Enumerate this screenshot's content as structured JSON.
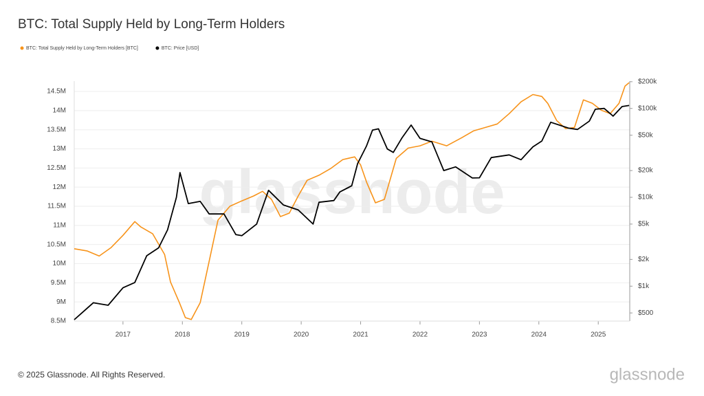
{
  "chart_data": {
    "type": "line",
    "title": "BTC: Total Supply Held by Long-Term Holders",
    "watermark": "glassnode",
    "xlim": [
      2016.18,
      2025.53
    ],
    "xticks": [
      2017,
      2018,
      2019,
      2020,
      2021,
      2022,
      2023,
      2024,
      2025
    ],
    "ylim": [
      8500000,
      14770000
    ],
    "yticks": [
      {
        "value": 8500000,
        "label": "8.5M"
      },
      {
        "value": 9000000,
        "label": "9M"
      },
      {
        "value": 9500000,
        "label": "9.5M"
      },
      {
        "value": 10000000,
        "label": "10M"
      },
      {
        "value": 10500000,
        "label": "10.5M"
      },
      {
        "value": 11000000,
        "label": "11M"
      },
      {
        "value": 11500000,
        "label": "11.5M"
      },
      {
        "value": 12000000,
        "label": "12M"
      },
      {
        "value": 12500000,
        "label": "12.5M"
      },
      {
        "value": 13000000,
        "label": "13M"
      },
      {
        "value": 13500000,
        "label": "13.5M"
      },
      {
        "value": 14000000,
        "label": "14M"
      },
      {
        "value": 14500000,
        "label": "14.5M"
      }
    ],
    "y2lim": [
      405,
      203000
    ],
    "y2scale": "log",
    "y2ticks": [
      {
        "value": 500,
        "label": "$500"
      },
      {
        "value": 1000,
        "label": "$1k"
      },
      {
        "value": 2000,
        "label": "$2k"
      },
      {
        "value": 5000,
        "label": "$5k"
      },
      {
        "value": 10000,
        "label": "$10k"
      },
      {
        "value": 20000,
        "label": "$20k"
      },
      {
        "value": 50000,
        "label": "$50k"
      },
      {
        "value": 100000,
        "label": "$100k"
      },
      {
        "value": 200000,
        "label": "$200k"
      }
    ],
    "grid": true,
    "legend": "top-left",
    "series": [
      {
        "name": "BTC: Total Supply Held by Long-Term Holders [BTC]",
        "color": "#f7931a",
        "axis": "y",
        "x": [
          2016.18,
          2016.4,
          2016.6,
          2016.8,
          2017.0,
          2017.2,
          2017.3,
          2017.5,
          2017.7,
          2017.8,
          2017.95,
          2018.05,
          2018.15,
          2018.3,
          2018.45,
          2018.6,
          2018.8,
          2019.0,
          2019.2,
          2019.35,
          2019.5,
          2019.65,
          2019.8,
          2019.95,
          2020.1,
          2020.3,
          2020.5,
          2020.7,
          2020.9,
          2021.0,
          2021.1,
          2021.25,
          2021.4,
          2021.6,
          2021.8,
          2022.0,
          2022.2,
          2022.45,
          2022.7,
          2022.9,
          2023.1,
          2023.3,
          2023.5,
          2023.7,
          2023.9,
          2024.05,
          2024.15,
          2024.3,
          2024.45,
          2024.6,
          2024.75,
          2024.9,
          2025.05,
          2025.2,
          2025.35,
          2025.45,
          2025.52
        ],
        "values": [
          10390000,
          10330000,
          10200000,
          10420000,
          10740000,
          11100000,
          10960000,
          10780000,
          10240000,
          9520000,
          8980000,
          8590000,
          8540000,
          8980000,
          10060000,
          11140000,
          11500000,
          11640000,
          11770000,
          11890000,
          11680000,
          11230000,
          11320000,
          11770000,
          12180000,
          12310000,
          12490000,
          12720000,
          12790000,
          12580000,
          12130000,
          11590000,
          11680000,
          12750000,
          13020000,
          13080000,
          13200000,
          13080000,
          13290000,
          13470000,
          13560000,
          13650000,
          13920000,
          14230000,
          14420000,
          14370000,
          14190000,
          13740000,
          13530000,
          13560000,
          14280000,
          14190000,
          14010000,
          13920000,
          14190000,
          14640000,
          14730000
        ]
      },
      {
        "name": "BTC: Price [USD]",
        "color": "#000000",
        "axis": "y2",
        "x": [
          2016.18,
          2016.5,
          2016.75,
          2017.0,
          2017.2,
          2017.4,
          2017.6,
          2017.75,
          2017.9,
          2017.96,
          2018.1,
          2018.3,
          2018.45,
          2018.7,
          2018.9,
          2019.0,
          2019.25,
          2019.45,
          2019.7,
          2019.95,
          2020.2,
          2020.3,
          2020.55,
          2020.65,
          2020.85,
          2020.95,
          2021.1,
          2021.2,
          2021.3,
          2021.45,
          2021.55,
          2021.7,
          2021.85,
          2022.0,
          2022.2,
          2022.4,
          2022.6,
          2022.88,
          2023.0,
          2023.2,
          2023.5,
          2023.7,
          2023.9,
          2024.05,
          2024.2,
          2024.5,
          2024.65,
          2024.85,
          2024.95,
          2025.1,
          2025.25,
          2025.4,
          2025.52
        ],
        "values": [
          420,
          650,
          610,
          960,
          1100,
          2200,
          2700,
          4300,
          10000,
          19000,
          8500,
          9000,
          6500,
          6500,
          3800,
          3700,
          5000,
          12000,
          8200,
          7200,
          5000,
          8800,
          9200,
          11500,
          13500,
          24000,
          38000,
          57000,
          59000,
          35000,
          32000,
          47000,
          65000,
          46000,
          42000,
          20000,
          22000,
          16500,
          16600,
          28000,
          30000,
          26500,
          37000,
          43000,
          70000,
          60000,
          58000,
          72000,
          98000,
          100000,
          82000,
          105000,
          108000
        ]
      }
    ]
  },
  "footer": "© 2025 Glassnode. All Rights Reserved.",
  "brand": "glassnode"
}
